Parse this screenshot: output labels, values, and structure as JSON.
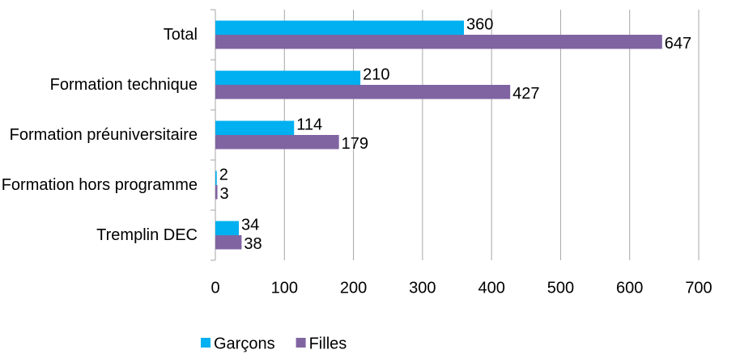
{
  "chart_data": {
    "type": "bar",
    "orientation": "horizontal",
    "categories": [
      "Total",
      "Formation technique",
      "Formation préuniversitaire",
      "Formation hors programme",
      "Tremplin DEC"
    ],
    "series": [
      {
        "name": "Garçons",
        "color": "#00b0f0",
        "values": [
          360,
          210,
          114,
          2,
          34
        ]
      },
      {
        "name": "Filles",
        "color": "#8064a2",
        "values": [
          647,
          427,
          179,
          3,
          38
        ]
      }
    ],
    "xlim": [
      0,
      700
    ],
    "xticks": [
      0,
      100,
      200,
      300,
      400,
      500,
      600,
      700
    ],
    "grid": true,
    "legend": "bottom"
  }
}
